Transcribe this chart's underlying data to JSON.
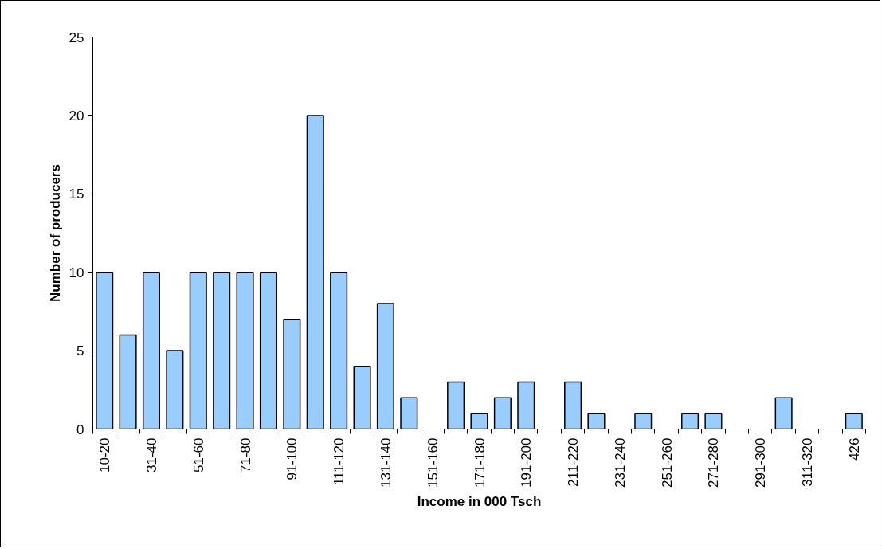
{
  "chart_data": {
    "type": "bar",
    "xlabel": "Income in 000 Tsch",
    "ylabel": "Number of producers",
    "categories": [
      "10-20",
      null,
      "31-40",
      null,
      "51-60",
      null,
      "71-80",
      null,
      "91-100",
      null,
      "111-120",
      null,
      "131-140",
      null,
      "151-160",
      null,
      "171-180",
      null,
      "191-200",
      null,
      "211-220",
      null,
      "231-240",
      null,
      "251-260",
      null,
      "271-280",
      null,
      "291-300",
      null,
      "311-320",
      null,
      "426"
    ],
    "values": [
      10,
      6,
      10,
      5,
      10,
      10,
      10,
      10,
      7,
      20,
      10,
      4,
      8,
      2,
      0,
      3,
      1,
      2,
      3,
      0,
      3,
      1,
      0,
      1,
      0,
      1,
      1,
      0,
      0,
      2,
      0,
      0,
      1
    ],
    "color": "#99ccff",
    "ylim": [
      0,
      25
    ],
    "yticks": [
      0,
      5,
      10,
      15,
      20,
      25
    ],
    "grid": false
  }
}
